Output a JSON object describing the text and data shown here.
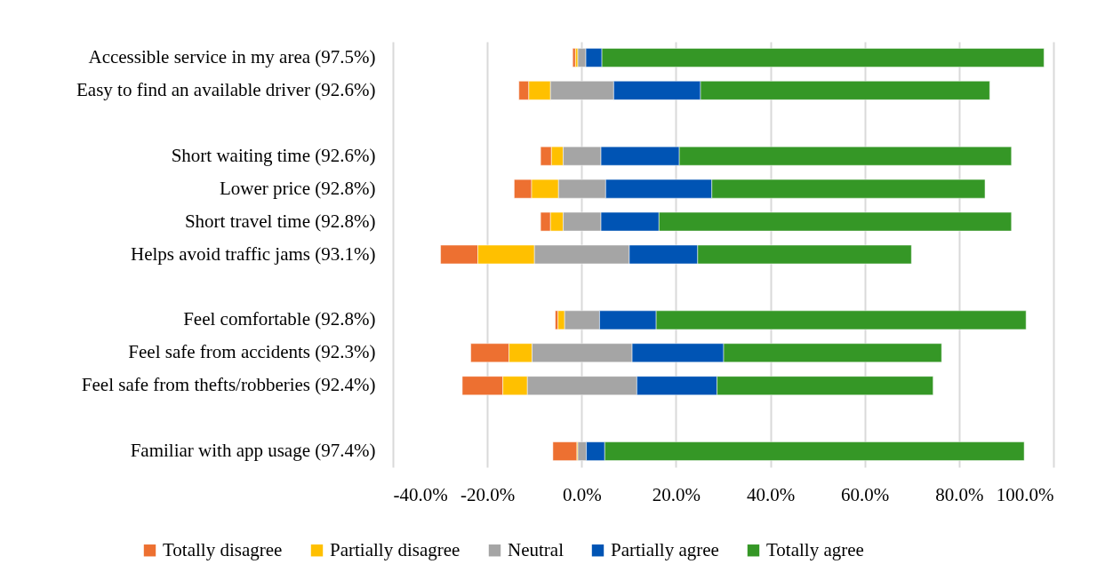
{
  "chart_data": {
    "type": "bar",
    "orientation": "horizontal",
    "categories": [
      "Accessible service in my area (97.5%)",
      "Easy to find an available driver (92.6%)",
      null,
      "Short waiting time (92.6%)",
      "Lower price (92.8%)",
      "Short travel time (92.8%)",
      "Helps avoid traffic jams (93.1%)",
      null,
      "Feel comfortable (92.8%)",
      "Feel safe from accidents (92.3%)",
      "Feel safe from thefts/robberies (92.4%)",
      null,
      "Familiar with app usage (97.4%)"
    ],
    "series": [
      {
        "name": "Totally disagree",
        "color": "#ed7031",
        "base": [
          -1.9,
          -13.3,
          null,
          -8.7,
          -14.3,
          -8.7,
          -29.9,
          null,
          -5.6,
          -23.5,
          -25.3,
          null,
          -6.1
        ],
        "values": [
          0.6,
          2.1,
          null,
          2.3,
          3.7,
          2.1,
          7.9,
          null,
          0.6,
          8.1,
          8.6,
          null,
          5.1
        ]
      },
      {
        "name": "Partially disagree",
        "color": "#ffc000",
        "base": [
          -1.3,
          -11.2,
          null,
          -6.4,
          -10.6,
          -6.6,
          -22.0,
          null,
          -5.0,
          -15.4,
          -16.7,
          null,
          -1.0
        ],
        "values": [
          0.5,
          4.6,
          null,
          2.5,
          5.7,
          2.7,
          12.0,
          null,
          1.4,
          4.9,
          5.2,
          null,
          0.2
        ]
      },
      {
        "name": "Neutral",
        "color": "#a5a5a5",
        "base": [
          -0.8,
          -6.6,
          null,
          -3.9,
          -4.9,
          -3.9,
          -10.0,
          null,
          -3.6,
          -10.5,
          -11.5,
          null,
          -0.8
        ],
        "values": [
          1.7,
          13.4,
          null,
          8.0,
          10.0,
          8.0,
          20.1,
          null,
          7.4,
          21.2,
          23.2,
          null,
          1.8
        ]
      },
      {
        "name": "Partially agree",
        "color": "#0054b4",
        "base": [
          0.9,
          6.8,
          null,
          4.1,
          5.1,
          4.1,
          10.1,
          null,
          3.8,
          10.7,
          11.7,
          null,
          1.0
        ],
        "values": [
          3.4,
          18.4,
          null,
          16.6,
          22.5,
          12.3,
          14.5,
          null,
          12.0,
          19.4,
          17.0,
          null,
          3.9
        ]
      },
      {
        "name": "Totally agree",
        "color": "#359726",
        "base": [
          4.3,
          25.2,
          null,
          20.7,
          27.6,
          16.4,
          24.6,
          null,
          15.8,
          30.1,
          28.7,
          null,
          4.9
        ],
        "values": [
          93.7,
          61.3,
          null,
          70.4,
          57.9,
          74.7,
          45.3,
          null,
          78.4,
          46.2,
          45.8,
          null,
          88.9
        ]
      }
    ],
    "xlim": [
      -40,
      100
    ],
    "xticks": [
      {
        "value": -40,
        "label": "-40.0%"
      },
      {
        "value": -20,
        "label": "-20.0%"
      },
      {
        "value": 0,
        "label": "0.0%"
      },
      {
        "value": 20,
        "label": "20.0%"
      },
      {
        "value": 40,
        "label": "40.0%"
      },
      {
        "value": 60,
        "label": "60.0%"
      },
      {
        "value": 80,
        "label": "80.0%"
      },
      {
        "value": 100,
        "label": "100.0%"
      }
    ],
    "grid": "x",
    "legend": "bottom"
  }
}
